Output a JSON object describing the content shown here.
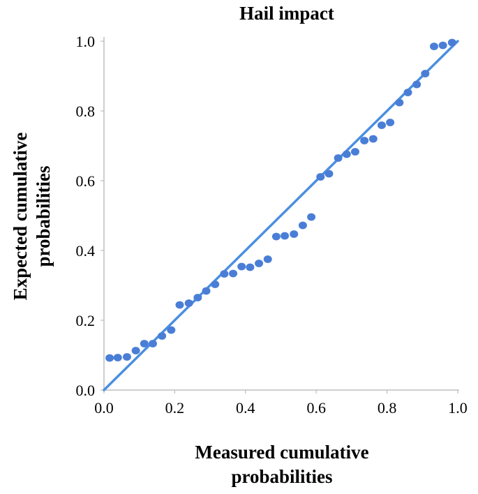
{
  "chart_data": {
    "type": "scatter",
    "title": "Hail impact",
    "xlabel": [
      "Measured cumulative",
      "probabilities"
    ],
    "ylabel": [
      "Expected cumulative",
      "probabilities"
    ],
    "xlim": [
      0,
      1
    ],
    "ylim": [
      0,
      1
    ],
    "xticks": [
      "0.0",
      "0.2",
      "0.4",
      "0.6",
      "0.8",
      "1.0"
    ],
    "yticks": [
      "0.0",
      "0.2",
      "0.4",
      "0.6",
      "0.8",
      "1.0"
    ],
    "grid": false,
    "reference_line": {
      "from": [
        0,
        0
      ],
      "to": [
        1,
        1
      ]
    },
    "colors": {
      "points": "#4a7ed6",
      "line": "#4a8fe0",
      "axis": "#bdbdbd"
    },
    "points": [
      [
        0.016,
        0.092
      ],
      [
        0.039,
        0.093
      ],
      [
        0.065,
        0.095
      ],
      [
        0.09,
        0.113
      ],
      [
        0.114,
        0.133
      ],
      [
        0.138,
        0.133
      ],
      [
        0.164,
        0.155
      ],
      [
        0.19,
        0.172
      ],
      [
        0.214,
        0.244
      ],
      [
        0.24,
        0.249
      ],
      [
        0.265,
        0.265
      ],
      [
        0.289,
        0.284
      ],
      [
        0.314,
        0.303
      ],
      [
        0.34,
        0.333
      ],
      [
        0.365,
        0.334
      ],
      [
        0.389,
        0.354
      ],
      [
        0.413,
        0.352
      ],
      [
        0.438,
        0.363
      ],
      [
        0.463,
        0.375
      ],
      [
        0.487,
        0.44
      ],
      [
        0.511,
        0.442
      ],
      [
        0.537,
        0.447
      ],
      [
        0.562,
        0.472
      ],
      [
        0.586,
        0.496
      ],
      [
        0.612,
        0.611
      ],
      [
        0.636,
        0.62
      ],
      [
        0.662,
        0.665
      ],
      [
        0.686,
        0.676
      ],
      [
        0.71,
        0.683
      ],
      [
        0.736,
        0.715
      ],
      [
        0.761,
        0.72
      ],
      [
        0.785,
        0.759
      ],
      [
        0.809,
        0.767
      ],
      [
        0.835,
        0.824
      ],
      [
        0.859,
        0.853
      ],
      [
        0.884,
        0.876
      ],
      [
        0.908,
        0.907
      ],
      [
        0.933,
        0.985
      ],
      [
        0.958,
        0.988
      ],
      [
        0.984,
        0.996
      ]
    ]
  }
}
